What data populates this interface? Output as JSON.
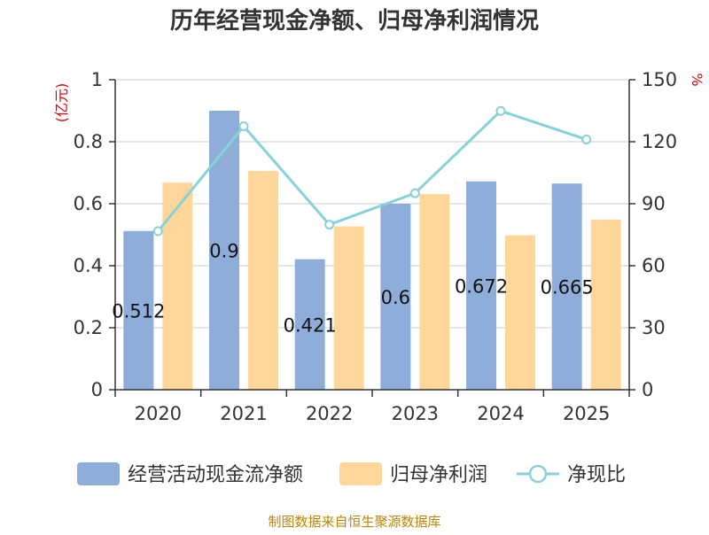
{
  "chart_data": {
    "type": "bar",
    "title": "历年经营现金净额、归母净利润情况",
    "categories": [
      "2020",
      "2021",
      "2022",
      "2023",
      "2024",
      "2025"
    ],
    "series": [
      {
        "name": "经营活动现金流净额",
        "kind": "bar",
        "axis": "left",
        "color": "#8eadd9",
        "values": [
          0.512,
          0.9,
          0.421,
          0.6,
          0.672,
          0.665
        ],
        "labels": [
          "0.512",
          "0.9",
          "0.421",
          "0.6",
          "0.672",
          "0.665"
        ]
      },
      {
        "name": "归母净利润",
        "kind": "bar",
        "axis": "left",
        "color": "#ffd699",
        "values": [
          0.668,
          0.706,
          0.527,
          0.631,
          0.498,
          0.549
        ]
      },
      {
        "name": "净现比",
        "kind": "line",
        "axis": "right",
        "color": "#86d2d8",
        "values": [
          76.7,
          127.5,
          79.9,
          95.1,
          134.9,
          121.1
        ]
      }
    ],
    "y_left": {
      "label": "(亿元)",
      "ylim": [
        0,
        1
      ],
      "ticks": [
        0,
        0.2,
        0.4,
        0.6,
        0.8,
        1
      ],
      "tick_labels": [
        "0",
        "0.2",
        "0.4",
        "0.6",
        "0.8",
        "1"
      ]
    },
    "y_right": {
      "label": "%",
      "ylim": [
        0,
        150
      ],
      "ticks": [
        0,
        30,
        60,
        90,
        120,
        150
      ],
      "tick_labels": [
        "0",
        "30",
        "60",
        "90",
        "120",
        "150"
      ]
    },
    "grid": true,
    "legend_position": "bottom"
  },
  "source": "制图数据来自恒生聚源数据库"
}
